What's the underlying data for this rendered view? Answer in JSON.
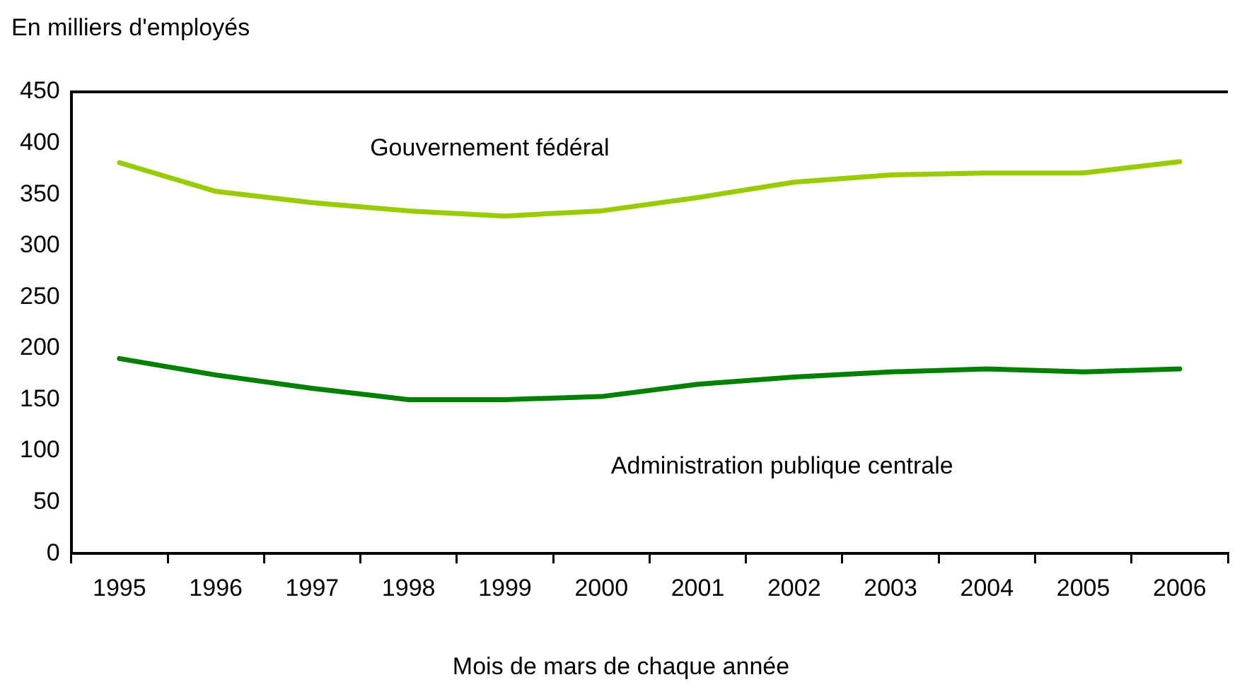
{
  "chart_data": {
    "type": "line",
    "ylabel": "En milliers d'employés",
    "xlabel": "Mois de mars de chaque année",
    "categories": [
      "1995",
      "1996",
      "1997",
      "1998",
      "1999",
      "2000",
      "2001",
      "2002",
      "2003",
      "2004",
      "2005",
      "2006"
    ],
    "series": [
      {
        "name": "Gouvernement fédéral",
        "color": "#99cc00",
        "values": [
          381,
          353,
          342,
          334,
          329,
          334,
          347,
          362,
          369,
          371,
          371,
          382
        ]
      },
      {
        "name": "Administration publique centrale",
        "color": "#008000",
        "values": [
          190,
          174,
          161,
          150,
          150,
          153,
          165,
          172,
          177,
          180,
          177,
          180
        ]
      }
    ],
    "ylim": [
      0,
      450
    ],
    "yticks": [
      0,
      50,
      100,
      150,
      200,
      250,
      300,
      350,
      400,
      450
    ],
    "grid": false,
    "legend": false,
    "marker": "none",
    "line_style": "solid"
  }
}
